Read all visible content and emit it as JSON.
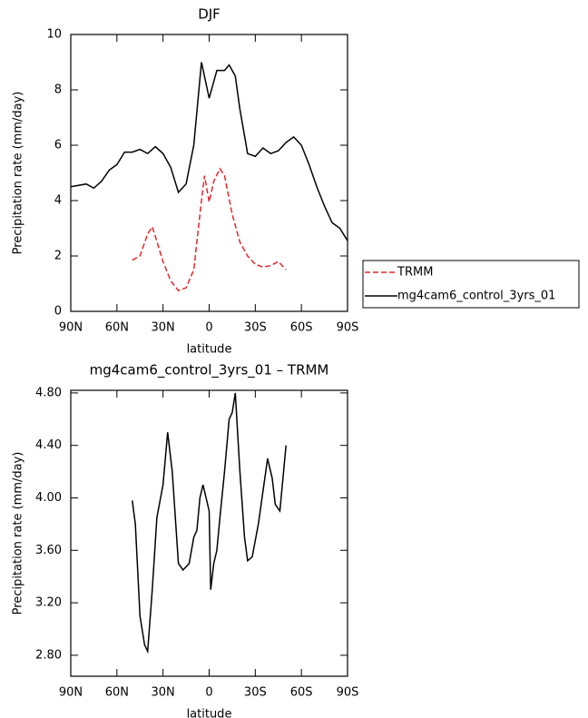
{
  "chart_data": [
    {
      "type": "line",
      "title": "DJF",
      "x_label": "latitude",
      "y_label": "Precipitation rate (mm/day)",
      "xlim": [
        90,
        -90
      ],
      "xticks": [
        {
          "value": 90,
          "label": "90N"
        },
        {
          "value": 60,
          "label": "60N"
        },
        {
          "value": 30,
          "label": "30N"
        },
        0,
        {
          "value": -30,
          "label": "30S"
        },
        {
          "value": -60,
          "label": "60S"
        },
        {
          "value": -90,
          "label": "90S"
        }
      ],
      "ylim": [
        0,
        10
      ],
      "yticks": [
        0,
        2,
        4,
        6,
        8,
        10
      ],
      "legend": "right",
      "series": [
        {
          "name": "TRMM",
          "color": "#e8262a",
          "linestyle": "dashed",
          "x": [
            50,
            45,
            40,
            37,
            35,
            30,
            25,
            20,
            15,
            10,
            5,
            3,
            0,
            -3,
            -7,
            -10,
            -15,
            -20,
            -25,
            -30,
            -35,
            -40,
            -45,
            -50
          ],
          "values": [
            1.85,
            2.0,
            2.8,
            3.05,
            2.7,
            1.8,
            1.1,
            0.75,
            0.85,
            1.5,
            4.0,
            4.9,
            3.95,
            4.7,
            5.15,
            4.9,
            3.5,
            2.5,
            2.0,
            1.7,
            1.6,
            1.65,
            1.8,
            1.5
          ]
        },
        {
          "name": "mg4cam6_control_3yrs_01",
          "color": "#000000",
          "linestyle": "solid",
          "x": [
            90,
            80,
            75,
            70,
            65,
            60,
            55,
            50,
            45,
            40,
            35,
            30,
            25,
            20,
            15,
            10,
            5,
            0,
            -5,
            -10,
            -13,
            -17,
            -20,
            -25,
            -30,
            -35,
            -40,
            -45,
            -50,
            -55,
            -60,
            -65,
            -70,
            -75,
            -80,
            -85,
            -90
          ],
          "values": [
            4.5,
            4.6,
            4.45,
            4.7,
            5.1,
            5.3,
            5.75,
            5.75,
            5.85,
            5.7,
            5.95,
            5.7,
            5.2,
            4.3,
            4.6,
            6.0,
            9.0,
            7.7,
            8.7,
            8.7,
            8.9,
            8.5,
            7.3,
            5.7,
            5.6,
            5.9,
            5.7,
            5.8,
            6.1,
            6.3,
            6.0,
            5.3,
            4.5,
            3.8,
            3.2,
            3.0,
            2.55
          ]
        }
      ]
    },
    {
      "type": "line",
      "title": "mg4cam6_control_3yrs_01 – TRMM",
      "x_label": "latitude",
      "y_label": "Precipitation rate (mm/day)",
      "xlim": [
        90,
        -90
      ],
      "xticks": [
        {
          "value": 90,
          "label": "90N"
        },
        {
          "value": 60,
          "label": "60N"
        },
        {
          "value": 30,
          "label": "30N"
        },
        0,
        {
          "value": -30,
          "label": "30S"
        },
        {
          "value": -60,
          "label": "60S"
        },
        {
          "value": -90,
          "label": "90S"
        }
      ],
      "ylim": [
        2.64,
        4.82
      ],
      "yticks": [
        {
          "value": 2.8,
          "label": "2.80"
        },
        {
          "value": 3.2,
          "label": "3.20"
        },
        {
          "value": 3.6,
          "label": "3.60"
        },
        {
          "value": 4.0,
          "label": "4.00"
        },
        {
          "value": 4.4,
          "label": "4.40"
        },
        {
          "value": 4.8,
          "label": "4.80"
        }
      ],
      "series": [
        {
          "color": "#000000",
          "linestyle": "solid",
          "x": [
            50,
            48,
            45,
            42,
            40,
            37,
            34,
            30,
            27,
            24,
            20,
            17,
            13,
            10,
            8,
            6,
            4,
            2,
            0,
            -1,
            -3,
            -5,
            -7,
            -10,
            -13,
            -15,
            -17,
            -20,
            -23,
            -25,
            -28,
            -32,
            -35,
            -38,
            -41,
            -43,
            -46,
            -50
          ],
          "values": [
            3.98,
            3.8,
            3.1,
            2.88,
            2.83,
            3.3,
            3.85,
            4.1,
            4.5,
            4.2,
            3.5,
            3.45,
            3.5,
            3.7,
            3.75,
            4.0,
            4.1,
            4.0,
            3.9,
            3.3,
            3.5,
            3.6,
            3.85,
            4.2,
            4.6,
            4.65,
            4.8,
            4.2,
            3.7,
            3.52,
            3.55,
            3.8,
            4.05,
            4.3,
            4.15,
            3.95,
            3.9,
            4.4
          ]
        }
      ]
    }
  ]
}
